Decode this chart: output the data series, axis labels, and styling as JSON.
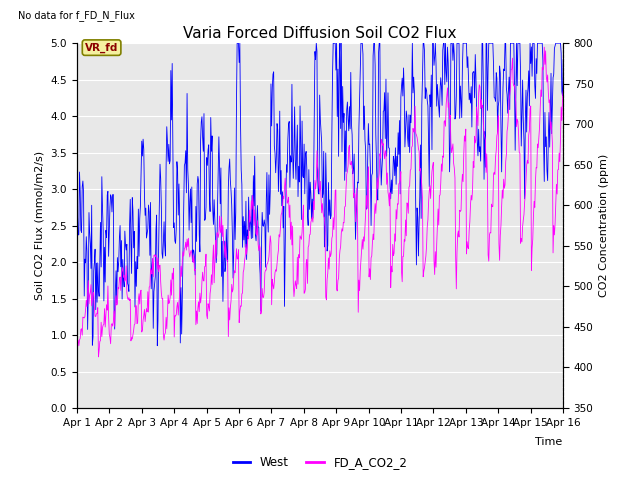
{
  "title": "Varia Forced Diffusion Soil CO2 Flux",
  "xlabel": "Time",
  "ylabel_left": "Soil CO2 Flux (mmol/m2/s)",
  "ylabel_right": "CO2 Concentration (ppm)",
  "ylim_left": [
    0,
    5.0
  ],
  "ylim_right": [
    350,
    800
  ],
  "yticks_left": [
    0.0,
    0.5,
    1.0,
    1.5,
    2.0,
    2.5,
    3.0,
    3.5,
    4.0,
    4.5,
    5.0
  ],
  "yticks_right": [
    350,
    400,
    450,
    500,
    550,
    600,
    650,
    700,
    750,
    800
  ],
  "text_no_data": "No data for f_FD_N_Flux",
  "annotation_box": "VR_fd",
  "legend_labels": [
    "West",
    "FD_A_CO2_2"
  ],
  "line_colors": [
    "blue",
    "magenta"
  ],
  "background_color": "#e8e8e8",
  "n_days": 15,
  "pts_per_day": 48,
  "title_fontsize": 11,
  "label_fontsize": 8,
  "tick_fontsize": 7.5
}
